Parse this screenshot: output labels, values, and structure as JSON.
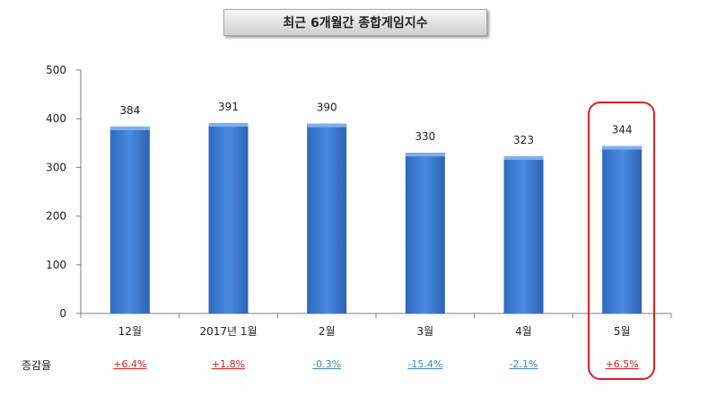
{
  "chart_data": {
    "type": "bar",
    "title": "최근 6개월간 종합게임지수",
    "categories": [
      "12월",
      "2017년 1월",
      "2월",
      "3월",
      "4월",
      "5월"
    ],
    "values": [
      384,
      391,
      390,
      330,
      323,
      344
    ],
    "ylim": [
      0,
      500
    ],
    "yticks": [
      0,
      100,
      200,
      300,
      400,
      500
    ],
    "bar_color": "#3d7fd6",
    "grid": false,
    "change_rate": {
      "label": "증감율",
      "values": [
        "+6.4%",
        "+1.8%",
        "-0.3%",
        "-15.4%",
        "-2.1%",
        "+6.5%"
      ]
    },
    "highlight_category": "5월",
    "highlight_color": "#e21f26"
  }
}
